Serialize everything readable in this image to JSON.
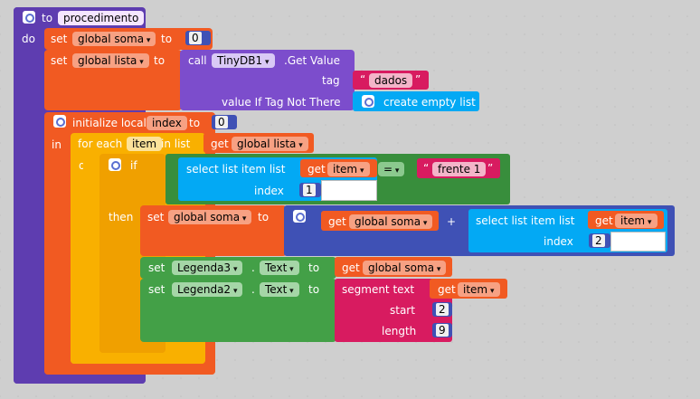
{
  "procedure": {
    "keyword": "to",
    "name": "procedimento",
    "do_label": "do"
  },
  "set_soma": {
    "set_label": "set",
    "var": "global soma",
    "to_label": "to",
    "value": "0"
  },
  "set_lista": {
    "set_label": "set",
    "var": "global lista",
    "to_label": "to",
    "call_label": "call",
    "component": "TinyDB1",
    "method": ".Get Value",
    "tag_label": "tag",
    "tag_value": "dados",
    "not_there_label": "value If Tag Not There",
    "empty_list_label": "create empty list"
  },
  "init_local": {
    "label": "initialize local",
    "var": "index",
    "to_label": "to",
    "value": "0",
    "in_label": "in"
  },
  "for_each": {
    "label": "for each",
    "var": "item",
    "in_list_label": "in list",
    "get_label": "get",
    "list_var": "global lista",
    "do_label": "do"
  },
  "if_block": {
    "if_label": "if",
    "then_label": "then",
    "select_label": "select list item  list",
    "get_label": "get",
    "get_var": "item",
    "index_label": "index",
    "index_value": "1",
    "op": "=",
    "compare_text": "frente 1"
  },
  "then_set_soma": {
    "set_label": "set",
    "var": "global soma",
    "to_label": "to",
    "get_label": "get",
    "get_var": "global soma",
    "plus": "+",
    "select_label": "select list item  list",
    "item_get_label": "get",
    "item_var": "item",
    "index_label": "index",
    "index_value": "2"
  },
  "set_legenda3": {
    "set_label": "set",
    "component": "Legenda3",
    "prop": "Text",
    "to_label": "to",
    "get_label": "get",
    "get_var": "global soma"
  },
  "set_legenda2": {
    "set_label": "set",
    "component": "Legenda2",
    "prop": "Text",
    "to_label": "to",
    "segment_label": "segment  text",
    "get_label": "get",
    "get_var": "item",
    "start_label": "start",
    "start_value": "2",
    "length_label": "length",
    "length_value": "9"
  },
  "colors": {
    "procedure": "#5e3db0",
    "variables": "#f15a22",
    "control": "#f9b000",
    "components": "#43a047",
    "lists": "#03a9f4",
    "math": "#3f51b5",
    "text": "#d81b60"
  }
}
